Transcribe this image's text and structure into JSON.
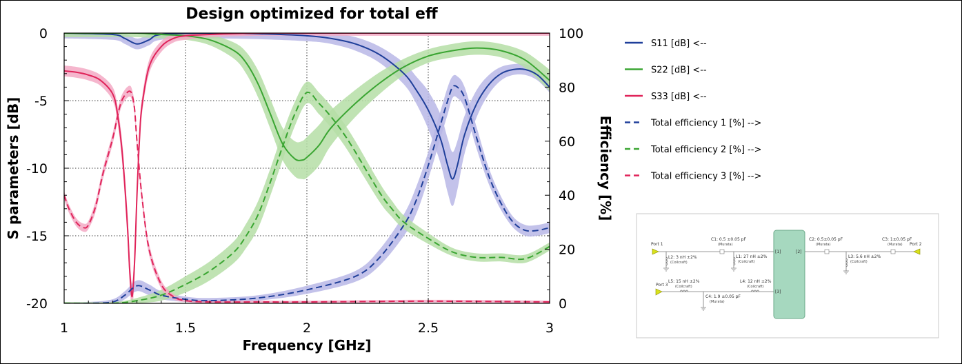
{
  "chart_data": {
    "type": "line",
    "title": "Design optimized for total eff",
    "xlabel": "Frequency [GHz]",
    "ylabel": "S parameters [dB]",
    "y2label": "Efficiency [%]",
    "xlim": [
      1,
      3
    ],
    "ylim": [
      -20,
      0
    ],
    "y2lim": [
      0,
      100
    ],
    "xticks": [
      "1",
      "1.5",
      "2",
      "2.5",
      "3"
    ],
    "yticks": [
      "0",
      "-5",
      "-10",
      "-15",
      "-20"
    ],
    "y2ticks": [
      "100",
      "80",
      "60",
      "40",
      "20",
      "0"
    ],
    "grid": true,
    "legend_position": "right",
    "series": [
      {
        "name": "S11 [dB] <--",
        "axis": "left",
        "style": "solid",
        "color": "#1f3f9a",
        "band_color": "#b9b7e6",
        "x": [
          1.0,
          1.2,
          1.25,
          1.3,
          1.35,
          1.4,
          1.6,
          1.8,
          2.0,
          2.1,
          2.2,
          2.3,
          2.4,
          2.45,
          2.5,
          2.55,
          2.58,
          2.6,
          2.62,
          2.65,
          2.7,
          2.75,
          2.8,
          2.85,
          2.9,
          2.95,
          3.0
        ],
        "values": [
          0,
          -0.1,
          -0.4,
          -0.8,
          -0.5,
          -0.1,
          0,
          -0.05,
          -0.2,
          -0.4,
          -0.8,
          -1.6,
          -3,
          -4.2,
          -5.7,
          -7.8,
          -9.8,
          -10.8,
          -9.8,
          -7.5,
          -5.2,
          -3.8,
          -3,
          -2.7,
          -2.7,
          -3.1,
          -4
        ],
        "band": [
          0.4,
          0.4,
          0.4,
          0.4,
          0.4,
          0.4,
          0.4,
          0.4,
          0.4,
          0.4,
          0.5,
          0.6,
          0.8,
          1.0,
          1.4,
          1.8,
          2.0,
          2.0,
          1.8,
          1.4,
          1.0,
          0.7,
          0.5,
          0.4,
          0.4,
          0.4,
          0.4
        ]
      },
      {
        "name": "S22 [dB] <--",
        "axis": "left",
        "style": "solid",
        "color": "#3aa532",
        "band_color": "#b5dea6",
        "x": [
          1.0,
          1.2,
          1.3,
          1.4,
          1.5,
          1.6,
          1.7,
          1.75,
          1.8,
          1.85,
          1.9,
          1.95,
          1.98,
          2.0,
          2.05,
          2.1,
          2.2,
          2.3,
          2.4,
          2.5,
          2.6,
          2.7,
          2.8,
          2.9,
          3.0
        ],
        "values": [
          0,
          0,
          0,
          -0.1,
          -0.2,
          -0.5,
          -1.3,
          -2.2,
          -3.8,
          -6,
          -8.2,
          -9.3,
          -9.4,
          -9.2,
          -8.3,
          -7,
          -5.2,
          -3.7,
          -2.5,
          -1.7,
          -1.3,
          -1.1,
          -1.3,
          -2,
          -3.5
        ],
        "band": [
          0.3,
          0.3,
          0.3,
          0.3,
          0.3,
          0.4,
          0.6,
          0.8,
          1.0,
          1.1,
          1.2,
          1.3,
          1.4,
          1.5,
          1.5,
          1.3,
          1.0,
          0.8,
          0.6,
          0.5,
          0.5,
          0.5,
          0.5,
          0.6,
          0.8
        ]
      },
      {
        "name": "S33 [dB] <--",
        "axis": "left",
        "style": "solid",
        "color": "#e0245a",
        "band_color": "#f3a9c4",
        "x": [
          1.0,
          1.05,
          1.1,
          1.15,
          1.2,
          1.22,
          1.24,
          1.26,
          1.27,
          1.28,
          1.29,
          1.3,
          1.31,
          1.32,
          1.35,
          1.4,
          1.45,
          1.5,
          1.6,
          1.8,
          2.0,
          2.5,
          3.0
        ],
        "values": [
          -2.8,
          -2.9,
          -3.1,
          -3.5,
          -4.5,
          -6,
          -9,
          -14,
          -17.5,
          -19.5,
          -17,
          -12,
          -8,
          -5.5,
          -2.5,
          -1,
          -0.4,
          -0.2,
          -0.1,
          0,
          0,
          0,
          0
        ],
        "band": [
          0.4,
          0.4,
          0.4,
          0.4,
          0.5,
          0.6,
          0.8,
          1.0,
          1.0,
          1.0,
          1.0,
          1.0,
          0.8,
          0.6,
          0.5,
          0.4,
          0.3,
          0.3,
          0.2,
          0.2,
          0.2,
          0.2,
          0.2
        ]
      },
      {
        "name": "Total efficiency 1 [%] -->",
        "axis": "right",
        "style": "dashed",
        "color": "#1f3f9a",
        "band_color": "#b9b7e6",
        "x": [
          1.0,
          1.1,
          1.2,
          1.25,
          1.3,
          1.35,
          1.4,
          1.5,
          1.6,
          1.8,
          2.0,
          2.2,
          2.3,
          2.4,
          2.45,
          2.5,
          2.55,
          2.58,
          2.6,
          2.62,
          2.65,
          2.7,
          2.75,
          2.8,
          2.85,
          2.9,
          2.95,
          3.0
        ],
        "values": [
          0,
          0,
          0.5,
          3,
          6.5,
          5,
          3,
          1.5,
          1,
          2,
          5,
          10,
          17,
          29,
          38,
          51,
          66,
          75,
          80,
          80,
          76,
          61,
          47,
          37,
          30,
          27,
          27,
          28
        ],
        "band": [
          0.5,
          0.5,
          1,
          1.5,
          2,
          2,
          1.5,
          1,
          1,
          1,
          1.5,
          2,
          3,
          4,
          5,
          5,
          5,
          5,
          4,
          4,
          4,
          4,
          3,
          2.5,
          2,
          2,
          2,
          2
        ]
      },
      {
        "name": "Total efficiency 2 [%] -->",
        "axis": "right",
        "style": "dashed",
        "color": "#3aa532",
        "band_color": "#b5dea6",
        "x": [
          1.0,
          1.2,
          1.3,
          1.4,
          1.5,
          1.6,
          1.7,
          1.75,
          1.8,
          1.85,
          1.9,
          1.95,
          2.0,
          2.05,
          2.1,
          2.15,
          2.2,
          2.3,
          2.35,
          2.4,
          2.5,
          2.6,
          2.7,
          2.8,
          2.9,
          3.0
        ],
        "values": [
          0,
          0,
          1,
          3,
          7,
          12,
          19,
          25,
          33,
          45,
          58,
          70,
          78,
          74,
          69,
          63,
          56,
          41,
          35,
          30,
          24,
          19,
          17,
          17,
          16.5,
          21
        ],
        "band": [
          0.5,
          0.5,
          1,
          2,
          3,
          3.5,
          4,
          4.5,
          5,
          5,
          5,
          4.5,
          4,
          4,
          4,
          4,
          4,
          3.5,
          3,
          2.5,
          2,
          1.5,
          1.5,
          1.5,
          1.5,
          1.5
        ]
      },
      {
        "name": "Total efficiency 3 [%] -->",
        "axis": "right",
        "style": "dashed",
        "color": "#e0245a",
        "band_color": "#f3a9c4",
        "x": [
          1.0,
          1.02,
          1.05,
          1.08,
          1.1,
          1.13,
          1.16,
          1.2,
          1.23,
          1.25,
          1.27,
          1.28,
          1.29,
          1.3,
          1.32,
          1.35,
          1.4,
          1.45,
          1.5,
          1.6,
          1.8,
          2.0,
          2.5,
          3.0
        ],
        "values": [
          40,
          35,
          30,
          28,
          29,
          36,
          48,
          61,
          73,
          77,
          78.5,
          77,
          72,
          60,
          40,
          20,
          7,
          2.5,
          1,
          0.5,
          0.5,
          0.5,
          0.8,
          0.5
        ],
        "band": [
          1.5,
          1.5,
          1.5,
          1.5,
          1.5,
          2,
          2,
          2,
          2,
          2,
          2,
          2,
          2,
          2,
          2,
          2,
          1.5,
          1,
          0.5,
          0.5,
          0.5,
          0.5,
          0.5,
          0.5
        ]
      }
    ]
  },
  "schematic": {
    "port1": "Port 1",
    "port2": "Port 2",
    "port3": "Port 3",
    "c1": "C1: 0.5 ±0.05 pF",
    "c1_vendor": "(Murata)",
    "l1": "L1: 27 nH ±2%",
    "l1_vendor": "(Coilcraft)",
    "l2": "L2: 3 nH ±2%",
    "l2_vendor": "(Coilcraft)",
    "c2": "C2: 0.5±0.05 pF",
    "c2_vendor": "(Murata)",
    "l3": "L3: 5.6 nH ±2%",
    "l3_vendor": "(Coilcraft)",
    "c3": "C3: 1±0.05 pF",
    "c3_vendor": "(Murata)",
    "l5": "L5: 15 nH ±2%",
    "l5_vendor": "(Coilcraft)",
    "c4": "C4: 1.9 ±0.05 pF",
    "c4_vendor": "(Murata)",
    "l4": "L4: 12 nH ±2%",
    "l4_vendor": "(Coilcraft)",
    "pin1": "[1]",
    "pin2": "[2]",
    "pin3": "[3]"
  }
}
